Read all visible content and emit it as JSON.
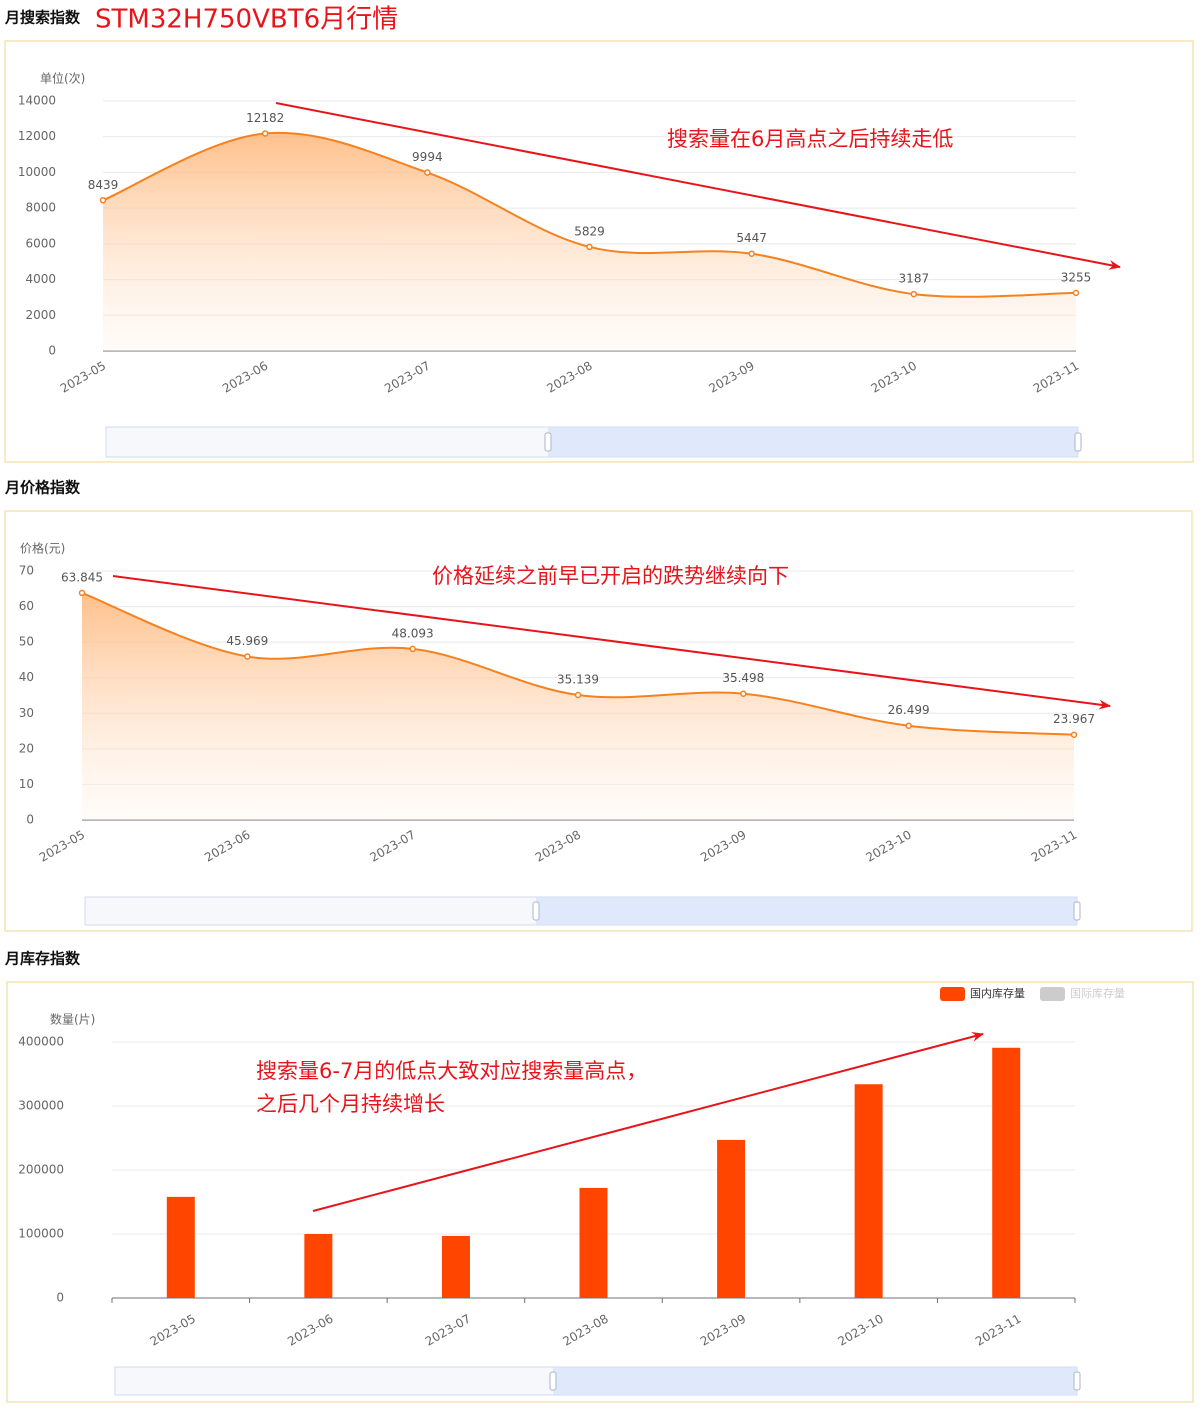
{
  "page_title": "STM32H750VBT6月行情",
  "chart_data": [
    {
      "type": "line",
      "title": "月搜索指数",
      "y_axis_label": "单位(次)",
      "categories": [
        "2023-05",
        "2023-06",
        "2023-07",
        "2023-08",
        "2023-09",
        "2023-10",
        "2023-11"
      ],
      "series": [
        {
          "color": "#f5811f",
          "values": [
            8439,
            12182,
            9994,
            5829,
            5447,
            3187,
            3255
          ]
        }
      ],
      "ylim": [
        0,
        14000
      ],
      "yticks": [
        0,
        2000,
        4000,
        6000,
        8000,
        10000,
        12000,
        14000
      ],
      "grid": true,
      "annotations": [
        "搜索量在6月高点之后持续走低"
      ]
    },
    {
      "type": "line",
      "title": "月价格指数",
      "y_axis_label": "价格(元)",
      "categories": [
        "2023-05",
        "2023-06",
        "2023-07",
        "2023-08",
        "2023-09",
        "2023-10",
        "2023-11"
      ],
      "series": [
        {
          "color": "#f5811f",
          "values": [
            63.845,
            45.969,
            48.093,
            35.139,
            35.498,
            26.499,
            23.967
          ]
        }
      ],
      "ylim": [
        0,
        70
      ],
      "yticks": [
        0,
        10,
        20,
        30,
        40,
        50,
        60,
        70
      ],
      "grid": true,
      "annotations": [
        "价格延续之前早已开启的跌势继续向下"
      ]
    },
    {
      "type": "bar",
      "title": "月库存指数",
      "y_axis_label": "数量(片)",
      "categories": [
        "2023-05",
        "2023-06",
        "2023-07",
        "2023-08",
        "2023-09",
        "2023-10",
        "2023-11"
      ],
      "series": [
        {
          "name": "国内库存量",
          "color": "#ff4500",
          "values": [
            158000,
            100000,
            97000,
            172000,
            247000,
            334000,
            391000
          ]
        },
        {
          "name": "国际库存量",
          "color": "#cccccc",
          "hidden": true,
          "values": [
            null,
            null,
            null,
            null,
            null,
            null,
            null
          ]
        }
      ],
      "ylim": [
        0,
        400000
      ],
      "yticks": [
        0,
        100000,
        200000,
        300000,
        400000
      ],
      "grid": true,
      "legend": "top-right",
      "annotations": [
        "搜索量6-7月的低点大致对应搜索量高点，",
        "之后几个月持续增长"
      ]
    }
  ]
}
